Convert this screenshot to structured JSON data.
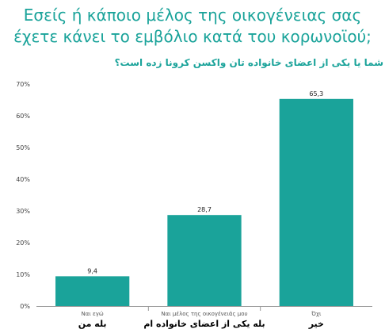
{
  "header": {
    "title_line1": "Εσείς ή κάποιο μέλος της οικογένειας σας",
    "title_line2": "έχετε κάνει το εμβόλιο κατά του κορωνοϊού;",
    "subtitle": "شما یا یکی از اعضای خانواده تان واکسن کرونا زده است؟"
  },
  "colors": {
    "bar": "#1aa39a",
    "title": "#1aa39a"
  },
  "chart_data": {
    "type": "bar",
    "categories": [
      "Ναι εγώ",
      "Ναι μέλος της οικογένειάς μου",
      "Όχι"
    ],
    "categories_secondary": [
      "بله من",
      "بله یکی از اعضای خانواده ام",
      "خیر"
    ],
    "values": [
      9.4,
      28.7,
      65.3
    ],
    "value_labels": [
      "9,4",
      "28,7",
      "65,3"
    ],
    "ylim": [
      0,
      70
    ],
    "yticks": [
      0,
      10,
      20,
      30,
      40,
      50,
      60,
      70
    ],
    "ytick_labels": [
      "0%",
      "10%",
      "20%",
      "30%",
      "40%",
      "50%",
      "60%",
      "70%"
    ],
    "grid": false,
    "legend": "none"
  }
}
